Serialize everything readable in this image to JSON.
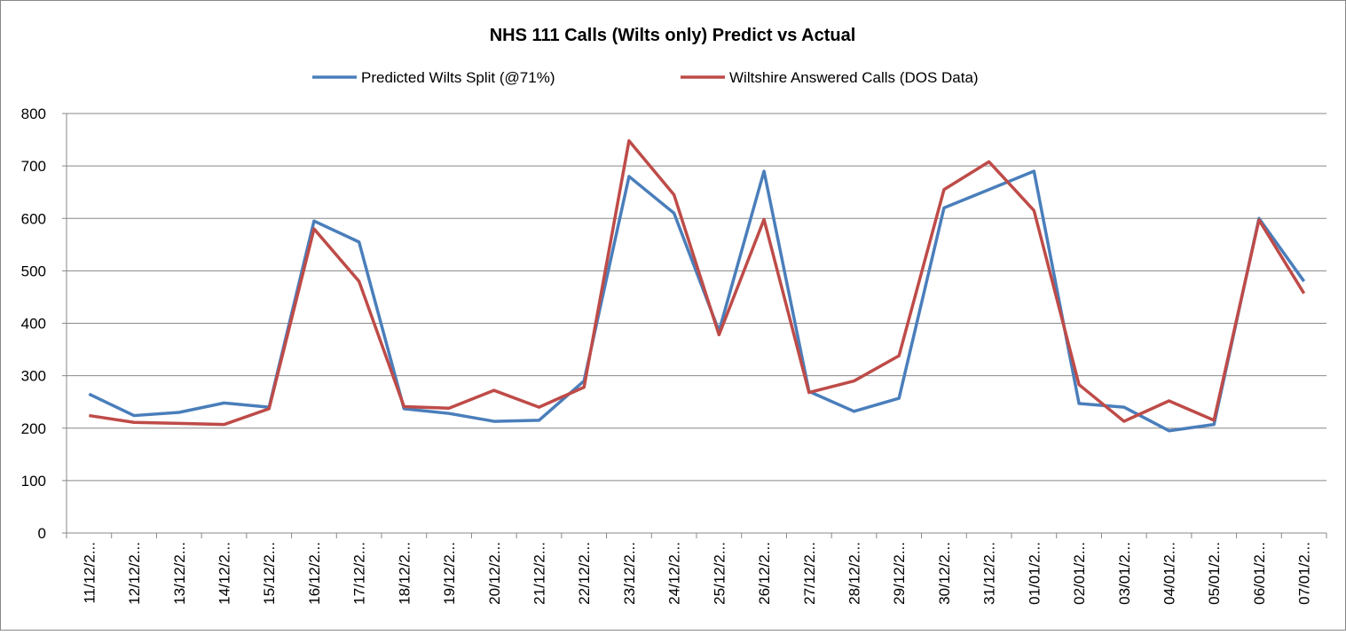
{
  "chart_data": {
    "type": "line",
    "title": "NHS 111 Calls (Wilts only) Predict vs Actual",
    "categories": [
      "11/12/2...",
      "12/12/2...",
      "13/12/2...",
      "14/12/2...",
      "15/12/2...",
      "16/12/2...",
      "17/12/2...",
      "18/12/2...",
      "19/12/2...",
      "20/12/2...",
      "21/12/2...",
      "22/12/2...",
      "23/12/2...",
      "24/12/2...",
      "25/12/2...",
      "26/12/2...",
      "27/12/2...",
      "28/12/2...",
      "29/12/2...",
      "30/12/2...",
      "31/12/2...",
      "01/01/2...",
      "02/01/2...",
      "03/01/2...",
      "04/01/2...",
      "05/01/2...",
      "06/01/2...",
      "07/01/2..."
    ],
    "series": [
      {
        "name": "Predicted Wilts Split (@71%)",
        "color": "#4a7ebb",
        "values": [
          265,
          224,
          230,
          248,
          240,
          595,
          555,
          237,
          228,
          213,
          215,
          290,
          680,
          610,
          385,
          690,
          270,
          232,
          257,
          620,
          655,
          690,
          247,
          240,
          195,
          207,
          600,
          480
        ]
      },
      {
        "name": "Wiltshire Answered Calls (DOS Data)",
        "color": "#be4b48",
        "values": [
          224,
          211,
          209,
          207,
          237,
          580,
          480,
          241,
          238,
          272,
          240,
          278,
          748,
          645,
          378,
          598,
          268,
          290,
          338,
          655,
          708,
          615,
          283,
          213,
          252,
          215,
          597,
          457
        ]
      }
    ],
    "ylim": [
      0,
      800
    ],
    "yticks": [
      0,
      100,
      200,
      300,
      400,
      500,
      600,
      700,
      800
    ],
    "grid": true,
    "legend": "top"
  }
}
